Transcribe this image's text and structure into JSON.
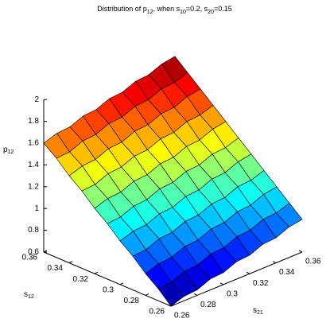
{
  "chart_data": {
    "type": "surface",
    "title": [
      "Distribution of p",
      "12",
      ", when s",
      "10",
      "=0.2, s",
      "20",
      "=0.15"
    ],
    "xlabel": {
      "text": "s",
      "sub": "21"
    },
    "ylabel": {
      "text": "s",
      "sub": "12"
    },
    "zlabel": {
      "text": "p",
      "sub": "12"
    },
    "colormap": "jet",
    "edge_color": "#000000",
    "x": [
      0.26,
      0.27,
      0.28,
      0.29,
      0.3,
      0.31,
      0.32,
      0.33,
      0.34,
      0.35,
      0.36
    ],
    "y": [
      0.26,
      0.27,
      0.28,
      0.29,
      0.3,
      0.31,
      0.32,
      0.33,
      0.34,
      0.35,
      0.36
    ],
    "z": [
      [
        0.6,
        0.64,
        0.65,
        0.7,
        0.71,
        0.76,
        0.77,
        0.82,
        0.83,
        0.88,
        0.9
      ],
      [
        0.71,
        0.72,
        0.77,
        0.78,
        0.83,
        0.84,
        0.89,
        0.9,
        0.95,
        0.96,
        1.0
      ],
      [
        0.8,
        0.84,
        0.85,
        0.9,
        0.91,
        0.96,
        0.97,
        1.02,
        1.03,
        1.08,
        1.1
      ],
      [
        0.91,
        0.92,
        0.97,
        0.98,
        1.03,
        1.04,
        1.09,
        1.1,
        1.15,
        1.16,
        1.2
      ],
      [
        1.0,
        1.04,
        1.05,
        1.1,
        1.11,
        1.16,
        1.17,
        1.22,
        1.23,
        1.28,
        1.3
      ],
      [
        1.11,
        1.12,
        1.17,
        1.18,
        1.23,
        1.24,
        1.29,
        1.3,
        1.35,
        1.36,
        1.4
      ],
      [
        1.2,
        1.24,
        1.25,
        1.3,
        1.31,
        1.36,
        1.37,
        1.42,
        1.43,
        1.48,
        1.5
      ],
      [
        1.31,
        1.32,
        1.37,
        1.38,
        1.43,
        1.44,
        1.49,
        1.5,
        1.55,
        1.56,
        1.6
      ],
      [
        1.4,
        1.44,
        1.45,
        1.5,
        1.51,
        1.56,
        1.57,
        1.62,
        1.63,
        1.68,
        1.7
      ],
      [
        1.51,
        1.52,
        1.57,
        1.58,
        1.63,
        1.64,
        1.69,
        1.7,
        1.75,
        1.76,
        1.8
      ],
      [
        1.6,
        1.64,
        1.65,
        1.7,
        1.71,
        1.76,
        1.77,
        1.82,
        1.83,
        1.88,
        1.9
      ]
    ],
    "xlim": [
      0.26,
      0.36
    ],
    "ylim": [
      0.26,
      0.36
    ],
    "zlim": [
      0.6,
      2
    ],
    "xticks": [
      0.26,
      0.28,
      0.3,
      0.32,
      0.34,
      0.36
    ],
    "yticks": [
      0.26,
      0.28,
      0.3,
      0.32,
      0.34,
      0.36
    ],
    "zticks": [
      0.6,
      0.8,
      1,
      1.2,
      1.4,
      1.6,
      1.8,
      2
    ]
  }
}
